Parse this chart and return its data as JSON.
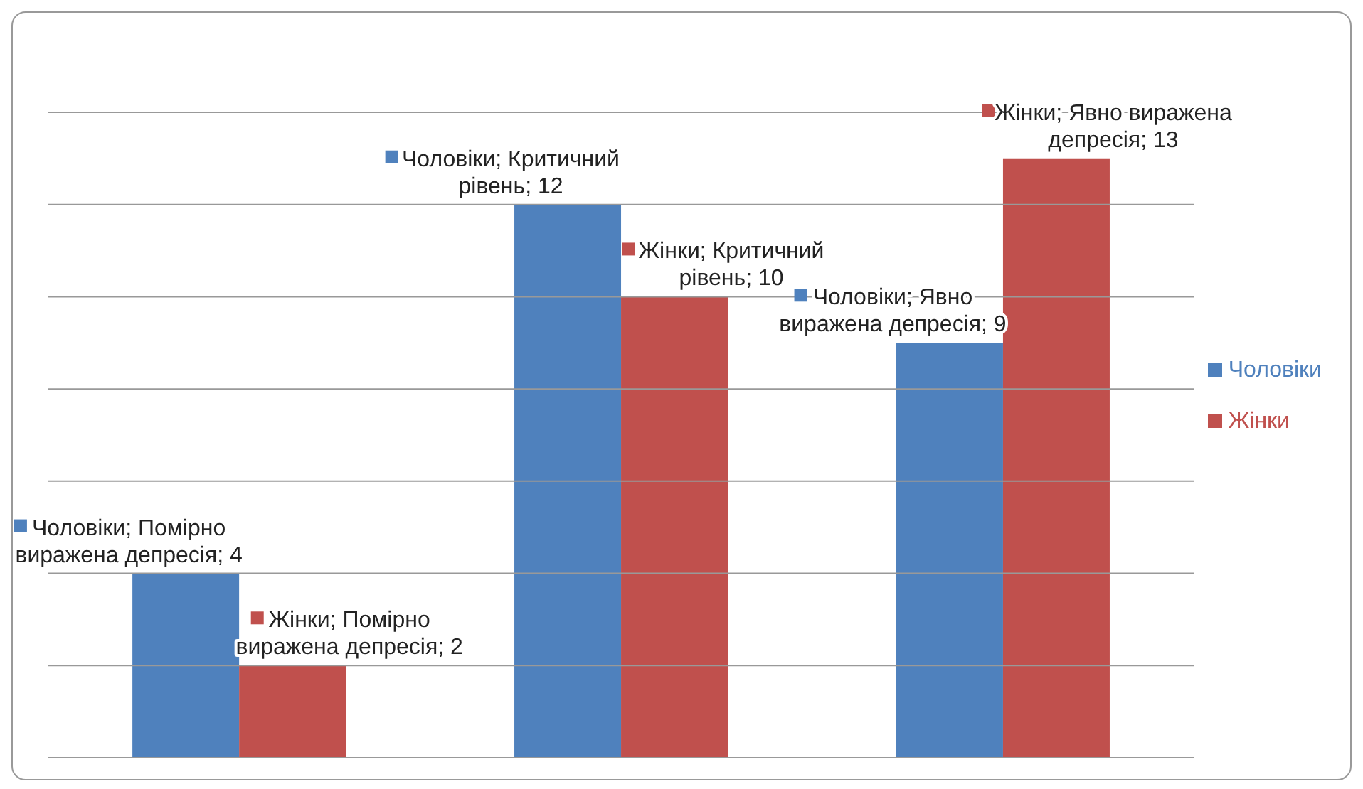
{
  "chart_data": {
    "type": "bar",
    "categories": [
      null,
      null,
      null
    ],
    "series": [
      {
        "name": "Чоловіки",
        "color": "#4f81bd",
        "values": [
          4,
          12,
          9
        ],
        "value_labels": [
          "Чоловіки; Помірно виражена депресія; 4",
          "Чоловіки; Критичний рівень; 12",
          "Чоловіки; Явно виражена депресія; 9"
        ]
      },
      {
        "name": "Жінки",
        "color": "#c0504d",
        "values": [
          2,
          10,
          13
        ],
        "value_labels": [
          "Жінки; Помірно виражена депресія; 2",
          "Жінки; Критичний рівень; 10",
          "Жінки; Явно виражена депресія; 13"
        ]
      }
    ],
    "ylim": [
      0,
      14
    ],
    "yticks": [
      {
        "value": 0,
        "label": null
      },
      {
        "value": 2,
        "label": null
      },
      {
        "value": 4,
        "label": null
      },
      {
        "value": 6,
        "label": null
      },
      {
        "value": 8,
        "label": null
      },
      {
        "value": 10,
        "label": null
      },
      {
        "value": 12,
        "label": null
      },
      {
        "value": 14,
        "label": null
      }
    ],
    "grid": "y",
    "legend": "right"
  }
}
